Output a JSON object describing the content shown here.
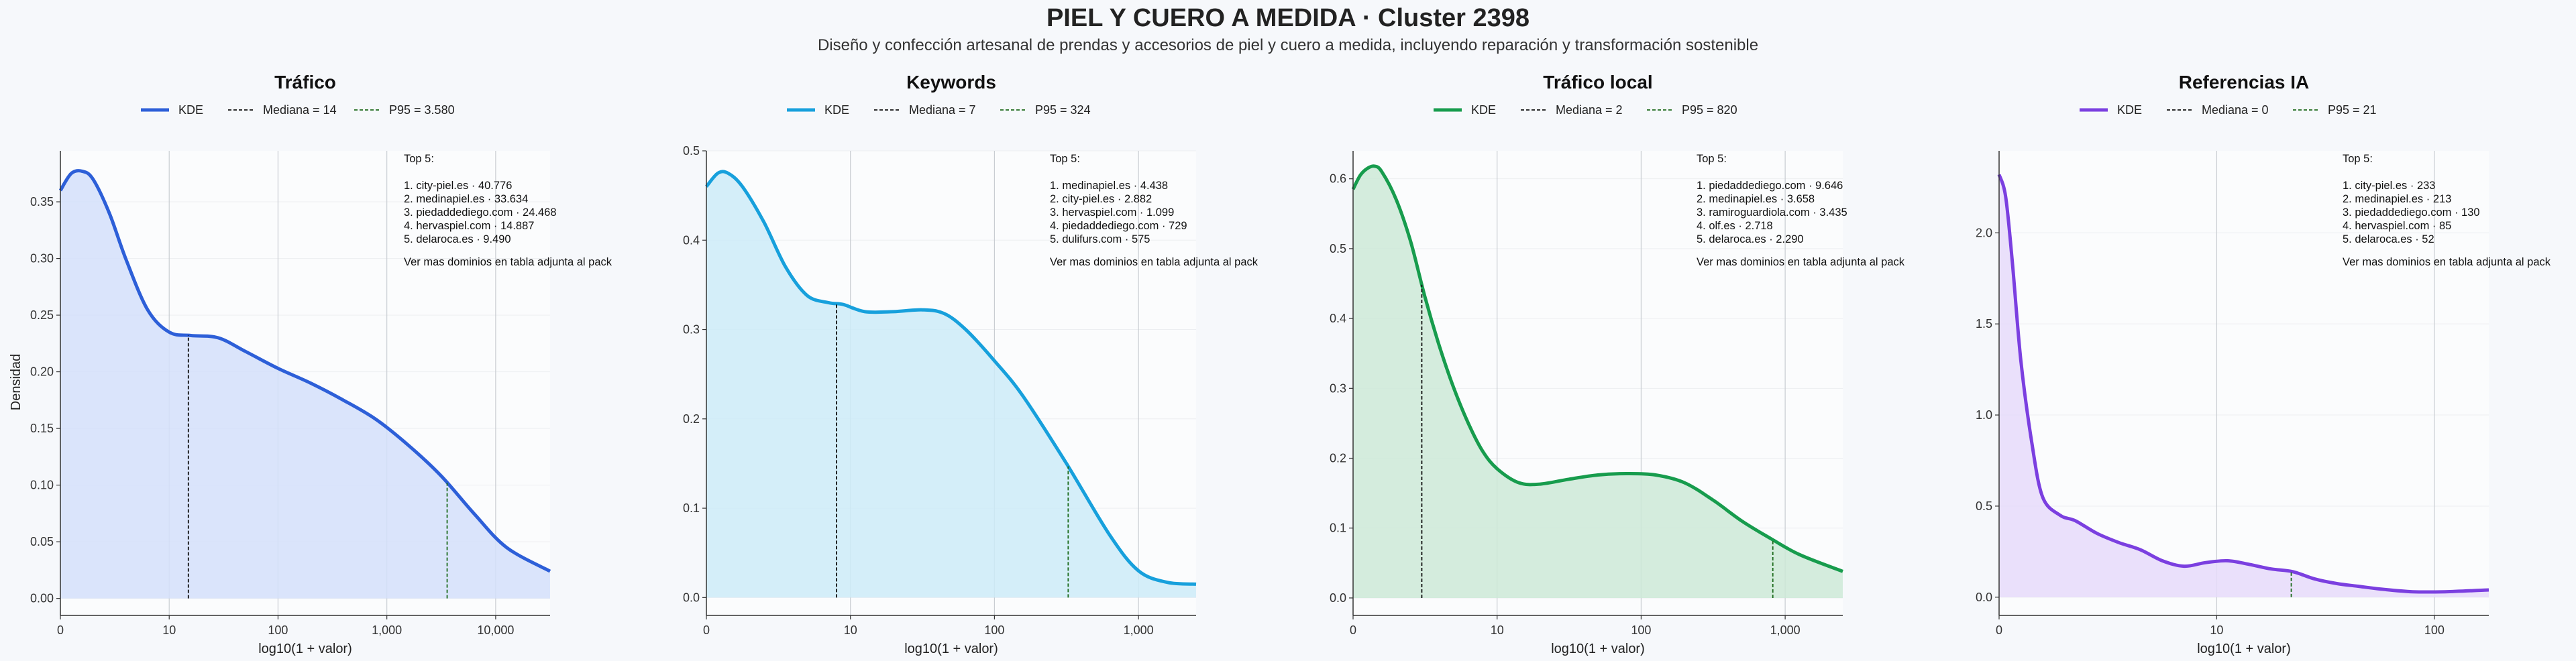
{
  "title": "PIEL Y CUERO A MEDIDA · Cluster 2398",
  "subtitle": "Diseño y confección artesanal de prendas y accesorios de piel y cuero a medida, incluyendo reparación y transformación sostenible",
  "chart_data": [
    {
      "type": "area",
      "title": "Tráfico",
      "xlabel": "log10(1 + valor)",
      "ylabel": "Densidad",
      "color": "#2d5fd8",
      "fill": "#d3dffa",
      "x_scale": "log10(1+x)",
      "xlim": [
        0,
        4.5
      ],
      "ylim": [
        -0.015,
        0.395
      ],
      "xticks": [
        0,
        1,
        2,
        3,
        4
      ],
      "xtick_labels": [
        "0",
        "10",
        "100",
        "1,000",
        "10,000"
      ],
      "yticks": [
        0.0,
        0.05,
        0.1,
        0.15,
        0.2,
        0.25,
        0.3,
        0.35
      ],
      "ytick_labels": [
        "0.00",
        "0.05",
        "0.10",
        "0.15",
        "0.20",
        "0.25",
        "0.30",
        "0.35"
      ],
      "kde_x": [
        0,
        0.1,
        0.2,
        0.3,
        0.45,
        0.6,
        0.8,
        1.0,
        1.2,
        1.45,
        1.7,
        2.0,
        2.3,
        2.6,
        2.9,
        3.2,
        3.5,
        3.8,
        4.1,
        4.5
      ],
      "kde_y": [
        0.36,
        0.375,
        0.377,
        0.37,
        0.34,
        0.3,
        0.255,
        0.235,
        0.232,
        0.23,
        0.218,
        0.203,
        0.19,
        0.175,
        0.158,
        0.135,
        0.108,
        0.075,
        0.045,
        0.024
      ],
      "median": 14,
      "p95": 3580,
      "legend": [
        "KDE",
        "Mediana = 14",
        "P95 = 3.580"
      ],
      "annotation": [
        "Top 5:",
        "1. city-piel.es · 40.776",
        "2. medinapiel.es · 33.634",
        "3. piedaddediego.com · 24.468",
        "4. hervaspiel.com · 14.887",
        "5. delaroca.es · 9.490",
        "Ver mas dominios en tabla adjunta al pack"
      ]
    },
    {
      "type": "area",
      "title": "Keywords",
      "xlabel": "log10(1 + valor)",
      "ylabel": "",
      "color": "#17a0dc",
      "fill": "#cdebf8",
      "x_scale": "log10(1+x)",
      "xlim": [
        0,
        3.4
      ],
      "ylim": [
        -0.02,
        0.5
      ],
      "xticks": [
        0,
        1,
        2,
        3
      ],
      "xtick_labels": [
        "0",
        "10",
        "100",
        "1,000"
      ],
      "yticks": [
        0.0,
        0.1,
        0.2,
        0.3,
        0.4,
        0.5
      ],
      "ytick_labels": [
        "0.0",
        "0.1",
        "0.2",
        "0.3",
        "0.4",
        "0.5"
      ],
      "kde_x": [
        0,
        0.08,
        0.15,
        0.25,
        0.4,
        0.55,
        0.7,
        0.85,
        0.95,
        1.1,
        1.3,
        1.5,
        1.65,
        1.8,
        2.0,
        2.2,
        2.5,
        2.8,
        3.0,
        3.2,
        3.4
      ],
      "kde_y": [
        0.46,
        0.475,
        0.475,
        0.46,
        0.42,
        0.37,
        0.338,
        0.33,
        0.328,
        0.32,
        0.32,
        0.322,
        0.318,
        0.3,
        0.265,
        0.225,
        0.15,
        0.07,
        0.03,
        0.017,
        0.015
      ],
      "median": 7,
      "p95": 324,
      "legend": [
        "KDE",
        "Mediana = 7",
        "P95 = 324"
      ],
      "annotation": [
        "Top 5:",
        "1. medinapiel.es · 4.438",
        "2. city-piel.es · 2.882",
        "3. hervaspiel.com · 1.099",
        "4. piedaddediego.com · 729",
        "5. dulifurs.com · 575",
        "Ver mas dominios en tabla adjunta al pack"
      ]
    },
    {
      "type": "area",
      "title": "Tráfico local",
      "xlabel": "log10(1 + valor)",
      "ylabel": "",
      "color": "#179c4d",
      "fill": "#cde9d7",
      "x_scale": "log10(1+x)",
      "xlim": [
        0,
        3.4
      ],
      "ylim": [
        -0.025,
        0.64
      ],
      "xticks": [
        0,
        1,
        2,
        3
      ],
      "xtick_labels": [
        "0",
        "10",
        "100",
        "1,000"
      ],
      "yticks": [
        0.0,
        0.1,
        0.2,
        0.3,
        0.4,
        0.5,
        0.6
      ],
      "ytick_labels": [
        "0.0",
        "0.1",
        "0.2",
        "0.3",
        "0.4",
        "0.5",
        "0.6"
      ],
      "kde_x": [
        0,
        0.05,
        0.1,
        0.15,
        0.2,
        0.3,
        0.4,
        0.5,
        0.6,
        0.7,
        0.8,
        0.9,
        1.0,
        1.15,
        1.3,
        1.5,
        1.7,
        1.9,
        2.1,
        2.3,
        2.5,
        2.7,
        2.9,
        3.1,
        3.4
      ],
      "kde_y": [
        0.585,
        0.605,
        0.615,
        0.618,
        0.61,
        0.57,
        0.51,
        0.43,
        0.36,
        0.3,
        0.25,
        0.21,
        0.185,
        0.165,
        0.163,
        0.17,
        0.176,
        0.178,
        0.176,
        0.165,
        0.14,
        0.11,
        0.085,
        0.062,
        0.038
      ],
      "median": 2,
      "p95": 820,
      "legend": [
        "KDE",
        "Mediana = 2",
        "P95 = 820"
      ],
      "annotation": [
        "Top 5:",
        "1. piedaddediego.com · 9.646",
        "2. medinapiel.es · 3.658",
        "3. ramiroguardiola.com · 3.435",
        "4. olf.es · 2.718",
        "5. delaroca.es · 2.290",
        "Ver mas dominios en tabla adjunta al pack"
      ]
    },
    {
      "type": "area",
      "title": "Referencias IA",
      "xlabel": "log10(1 + valor)",
      "ylabel": "",
      "color": "#7b3fe0",
      "fill": "#e6dafa",
      "x_scale": "log10(1+x)",
      "xlim": [
        0,
        2.25
      ],
      "ylim": [
        -0.1,
        2.45
      ],
      "xticks": [
        0,
        1,
        2
      ],
      "xtick_labels": [
        "0",
        "10",
        "100"
      ],
      "yticks": [
        0.0,
        0.5,
        1.0,
        1.5,
        2.0
      ],
      "ytick_labels": [
        "0.0",
        "0.5",
        "1.0",
        "1.5",
        "2.0"
      ],
      "kde_x": [
        0,
        0.03,
        0.06,
        0.1,
        0.15,
        0.2,
        0.28,
        0.35,
        0.45,
        0.55,
        0.65,
        0.75,
        0.85,
        0.95,
        1.05,
        1.15,
        1.25,
        1.35,
        1.45,
        1.55,
        1.65,
        1.75,
        1.9,
        2.05,
        2.25
      ],
      "kde_y": [
        2.32,
        2.2,
        1.85,
        1.3,
        0.85,
        0.55,
        0.45,
        0.42,
        0.35,
        0.3,
        0.26,
        0.2,
        0.17,
        0.19,
        0.2,
        0.18,
        0.155,
        0.14,
        0.1,
        0.075,
        0.06,
        0.045,
        0.03,
        0.03,
        0.04
      ],
      "median": 0,
      "p95": 21,
      "legend": [
        "KDE",
        "Mediana = 0",
        "P95 = 21"
      ],
      "annotation": [
        "Top 5:",
        "1. city-piel.es · 233",
        "2. medinapiel.es · 213",
        "3. piedaddediego.com · 130",
        "4. hervaspiel.com · 85",
        "5. delaroca.es · 52",
        "Ver mas dominios en tabla adjunta al pack"
      ]
    }
  ]
}
